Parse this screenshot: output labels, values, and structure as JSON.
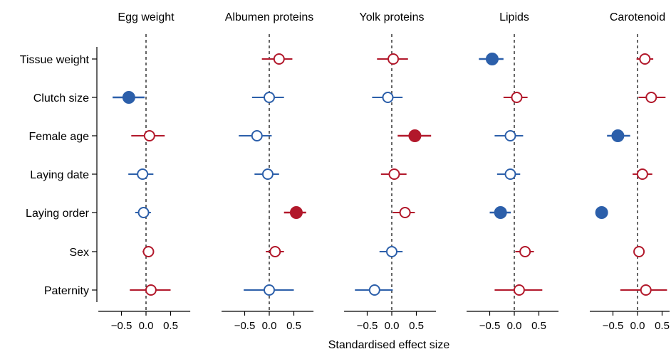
{
  "colors": {
    "positive": "#b2182b",
    "negative": "#2c5faa",
    "axis": "#000000"
  },
  "chart_data": {
    "type": "scatter",
    "subtype": "forest-plot",
    "xlabel": "Standardised effect size",
    "rows": [
      "Tissue weight",
      "Clutch size",
      "Female age",
      "Laying date",
      "Laying order",
      "Sex",
      "Paternity"
    ],
    "xticks": [
      -0.5,
      0.0,
      0.5
    ],
    "xtick_labels": [
      "−0.5",
      "0.0",
      "0.5"
    ],
    "reference_line": 0,
    "panels": [
      {
        "title": "Egg weight",
        "points": [
          {
            "row": "Clutch size",
            "value": -0.35,
            "lower": -0.68,
            "upper": -0.03,
            "direction": "negative",
            "significant": true
          },
          {
            "row": "Female age",
            "value": 0.07,
            "lower": -0.3,
            "upper": 0.38,
            "direction": "positive",
            "significant": false
          },
          {
            "row": "Laying date",
            "value": -0.07,
            "lower": -0.36,
            "upper": 0.15,
            "direction": "negative",
            "significant": false
          },
          {
            "row": "Laying order",
            "value": -0.05,
            "lower": -0.22,
            "upper": 0.1,
            "direction": "negative",
            "significant": false
          },
          {
            "row": "Sex",
            "value": 0.05,
            "lower": -0.07,
            "upper": 0.15,
            "direction": "positive",
            "significant": false
          },
          {
            "row": "Paternity",
            "value": 0.1,
            "lower": -0.33,
            "upper": 0.5,
            "direction": "positive",
            "significant": false
          }
        ]
      },
      {
        "title": "Albumen proteins",
        "points": [
          {
            "row": "Tissue weight",
            "value": 0.2,
            "lower": -0.15,
            "upper": 0.47,
            "direction": "positive",
            "significant": false
          },
          {
            "row": "Clutch size",
            "value": 0.0,
            "lower": -0.35,
            "upper": 0.3,
            "direction": "negative",
            "significant": false
          },
          {
            "row": "Female age",
            "value": -0.25,
            "lower": -0.62,
            "upper": 0.05,
            "direction": "negative",
            "significant": false
          },
          {
            "row": "Laying date",
            "value": -0.03,
            "lower": -0.3,
            "upper": 0.2,
            "direction": "negative",
            "significant": false
          },
          {
            "row": "Laying order",
            "value": 0.55,
            "lower": 0.3,
            "upper": 0.75,
            "direction": "positive",
            "significant": true
          },
          {
            "row": "Sex",
            "value": 0.12,
            "lower": -0.07,
            "upper": 0.3,
            "direction": "positive",
            "significant": false
          },
          {
            "row": "Paternity",
            "value": 0.0,
            "lower": -0.52,
            "upper": 0.5,
            "direction": "negative",
            "significant": false
          }
        ]
      },
      {
        "title": "Yolk proteins",
        "points": [
          {
            "row": "Tissue weight",
            "value": 0.03,
            "lower": -0.3,
            "upper": 0.33,
            "direction": "positive",
            "significant": false
          },
          {
            "row": "Clutch size",
            "value": -0.08,
            "lower": -0.4,
            "upper": 0.22,
            "direction": "negative",
            "significant": false
          },
          {
            "row": "Female age",
            "value": 0.47,
            "lower": 0.12,
            "upper": 0.8,
            "direction": "positive",
            "significant": true
          },
          {
            "row": "Laying date",
            "value": 0.05,
            "lower": -0.22,
            "upper": 0.3,
            "direction": "positive",
            "significant": false
          },
          {
            "row": "Laying order",
            "value": 0.27,
            "lower": 0.02,
            "upper": 0.47,
            "direction": "positive",
            "significant": false
          },
          {
            "row": "Sex",
            "value": 0.0,
            "lower": -0.25,
            "upper": 0.22,
            "direction": "negative",
            "significant": false
          },
          {
            "row": "Paternity",
            "value": -0.35,
            "lower": -0.75,
            "upper": 0.02,
            "direction": "negative",
            "significant": false
          }
        ]
      },
      {
        "title": "Lipids",
        "points": [
          {
            "row": "Tissue weight",
            "value": -0.45,
            "lower": -0.72,
            "upper": -0.22,
            "direction": "negative",
            "significant": true
          },
          {
            "row": "Clutch size",
            "value": 0.05,
            "lower": -0.22,
            "upper": 0.27,
            "direction": "positive",
            "significant": false
          },
          {
            "row": "Female age",
            "value": -0.08,
            "lower": -0.4,
            "upper": 0.18,
            "direction": "negative",
            "significant": false
          },
          {
            "row": "Laying date",
            "value": -0.08,
            "lower": -0.35,
            "upper": 0.12,
            "direction": "negative",
            "significant": false
          },
          {
            "row": "Laying order",
            "value": -0.28,
            "lower": -0.5,
            "upper": -0.07,
            "direction": "negative",
            "significant": true
          },
          {
            "row": "Sex",
            "value": 0.22,
            "lower": 0.02,
            "upper": 0.4,
            "direction": "positive",
            "significant": false
          },
          {
            "row": "Paternity",
            "value": 0.1,
            "lower": -0.4,
            "upper": 0.57,
            "direction": "positive",
            "significant": false
          }
        ]
      },
      {
        "title": "Carotenoid",
        "points": [
          {
            "row": "Tissue weight",
            "value": 0.15,
            "lower": -0.02,
            "upper": 0.32,
            "direction": "positive",
            "significant": false
          },
          {
            "row": "Clutch size",
            "value": 0.28,
            "lower": 0.02,
            "upper": 0.57,
            "direction": "positive",
            "significant": false
          },
          {
            "row": "Female age",
            "value": -0.4,
            "lower": -0.62,
            "upper": -0.15,
            "direction": "negative",
            "significant": true
          },
          {
            "row": "Laying date",
            "value": 0.1,
            "lower": -0.1,
            "upper": 0.3,
            "direction": "positive",
            "significant": false
          },
          {
            "row": "Laying order",
            "value": -0.73,
            "lower": -0.8,
            "upper": -0.65,
            "direction": "negative",
            "significant": true
          },
          {
            "row": "Sex",
            "value": 0.03,
            "lower": -0.07,
            "upper": 0.13,
            "direction": "positive",
            "significant": false
          },
          {
            "row": "Paternity",
            "value": 0.17,
            "lower": -0.35,
            "upper": 0.6,
            "direction": "positive",
            "significant": false
          }
        ]
      }
    ]
  }
}
